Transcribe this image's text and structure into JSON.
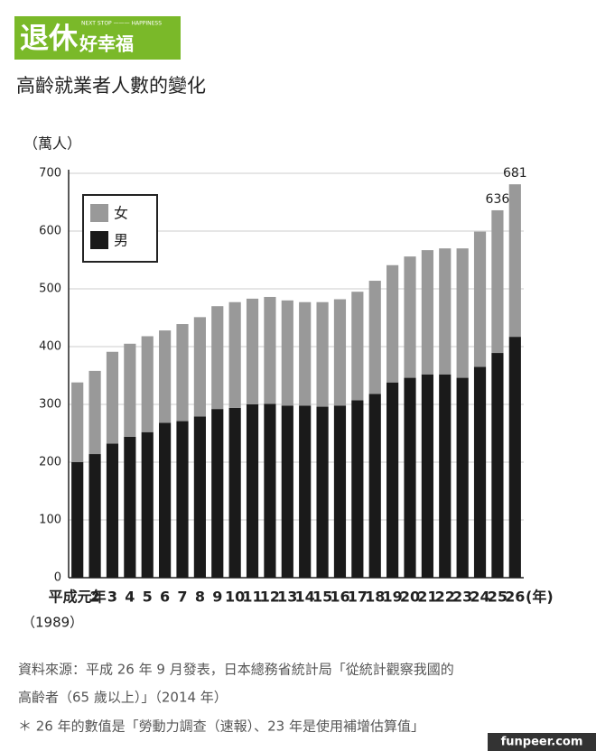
{
  "header": {
    "logo_main": "退休",
    "logo_sub": "好幸福",
    "logo_tagline": "NEXT STOP ——— HAPPINESS"
  },
  "chart_data": {
    "type": "bar",
    "stacked": true,
    "title": "高齡就業者人數的變化",
    "y_label": "（萬人）",
    "x_label": "(年)",
    "x_sublabel": "（1989）",
    "categories": [
      "平成元年",
      "2",
      "3",
      "4",
      "5",
      "6",
      "7",
      "8",
      "9",
      "10",
      "11",
      "12",
      "13",
      "14",
      "15",
      "16",
      "17",
      "18",
      "19",
      "20",
      "21",
      "22",
      "23",
      "24",
      "25",
      "26"
    ],
    "series": [
      {
        "name": "男",
        "color": "#1a1a1a",
        "values": [
          200,
          214,
          232,
          244,
          252,
          268,
          271,
          279,
          292,
          294,
          300,
          301,
          298,
          298,
          296,
          298,
          307,
          318,
          338,
          346,
          352,
          352,
          346,
          365,
          389,
          417
        ]
      },
      {
        "name": "女",
        "color": "#999999",
        "values": [
          138,
          144,
          159,
          161,
          166,
          160,
          168,
          172,
          178,
          183,
          183,
          185,
          182,
          179,
          181,
          184,
          188,
          196,
          203,
          210,
          215,
          218,
          224,
          234,
          247,
          264
        ]
      }
    ],
    "annotations": [
      {
        "x": "25",
        "text": "636"
      },
      {
        "x": "26",
        "text": "681"
      }
    ],
    "ylim": [
      0,
      700
    ],
    "yticks": [
      0,
      100,
      200,
      300,
      400,
      500,
      600,
      700
    ],
    "grid": true
  },
  "footer": {
    "source": [
      "資料來源：平成 26 年 9 月發表，日本總務省統計局「從統計觀察我國的",
      "高齡者（65 歲以上）」（2014 年）"
    ],
    "note": "＊ 26 年的數值是「勞動力調查（速報）、23 年是使用補增估算值」",
    "watermark": "funpeer.com"
  }
}
